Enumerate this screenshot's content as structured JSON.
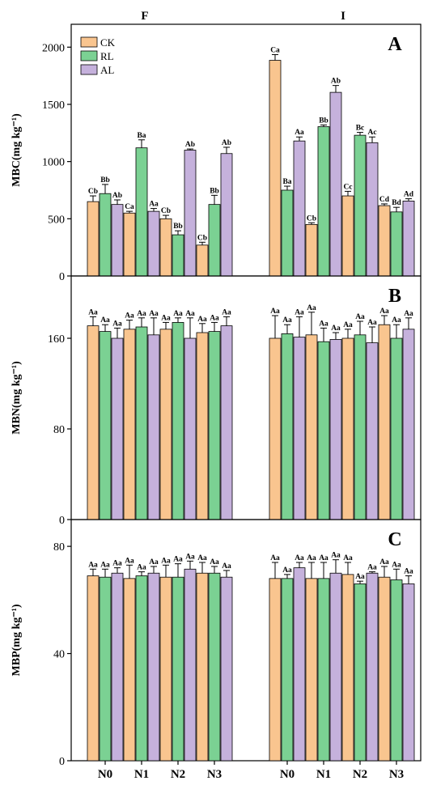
{
  "chart_data": {
    "type": "bar",
    "group_labels": [
      "F",
      "I"
    ],
    "categories": [
      "N0",
      "N1",
      "N2",
      "N3"
    ],
    "legend": [
      {
        "name": "CK",
        "color": "#F9C58F"
      },
      {
        "name": "RL",
        "color": "#7BD193"
      },
      {
        "name": "AL",
        "color": "#C5B1DC"
      }
    ],
    "panels": [
      {
        "letter": "A",
        "ylabel": "MBC(mg kg⁻¹)",
        "ylim": [
          0,
          2200
        ],
        "yticks": [
          0,
          500,
          1000,
          1500,
          2000
        ],
        "groups": [
          {
            "label": "F",
            "series": [
              {
                "name": "CK",
                "values": [
                  650,
                  550,
                  500,
                  270
                ],
                "errors": [
                  50,
                  15,
                  30,
                  25
                ],
                "letters": [
                  "Cb",
                  "Ca",
                  "Cb",
                  "Cb"
                ]
              },
              {
                "name": "RL",
                "values": [
                  720,
                  1120,
                  360,
                  625
                ],
                "errors": [
                  80,
                  70,
                  35,
                  80
                ],
                "letters": [
                  "Bb",
                  "Ba",
                  "Bb",
                  "Bb"
                ]
              },
              {
                "name": "AL",
                "values": [
                  625,
                  565,
                  1100,
                  1070
                ],
                "errors": [
                  40,
                  25,
                  10,
                  55
                ],
                "letters": [
                  "Ab",
                  "Aa",
                  "Ab",
                  "Ab"
                ]
              }
            ]
          },
          {
            "label": "I",
            "series": [
              {
                "name": "CK",
                "values": [
                  1885,
                  450,
                  700,
                  615
                ],
                "errors": [
                  50,
                  15,
                  40,
                  15
                ],
                "letters": [
                  "Ca",
                  "Cb",
                  "Cc",
                  "Cd"
                ]
              },
              {
                "name": "RL",
                "values": [
                  750,
                  1305,
                  1230,
                  560
                ],
                "errors": [
                  35,
                  15,
                  25,
                  40
                ],
                "letters": [
                  "Ba",
                  "Bb",
                  "Bc",
                  "Bd"
                ]
              },
              {
                "name": "AL",
                "values": [
                  1180,
                  1605,
                  1165,
                  655
                ],
                "errors": [
                  35,
                  60,
                  50,
                  20
                ],
                "letters": [
                  "Aa",
                  "Ab",
                  "Ac",
                  "Ad"
                ]
              }
            ]
          }
        ]
      },
      {
        "letter": "B",
        "ylabel": "MBN(mg kg⁻¹)",
        "ylim": [
          0,
          215
        ],
        "yticks": [
          0,
          80,
          160
        ],
        "groups": [
          {
            "label": "F",
            "series": [
              {
                "name": "CK",
                "values": [
                  171,
                  168,
                  168,
                  165
                ],
                "errors": [
                  8,
                  8,
                  6,
                  8
                ],
                "letters": [
                  "Aa",
                  "Aa",
                  "Aa",
                  "Aa"
                ]
              },
              {
                "name": "RL",
                "values": [
                  166,
                  170,
                  174,
                  166
                ],
                "errors": [
                  6,
                  8,
                  4,
                  8
                ],
                "letters": [
                  "Aa",
                  "Aa",
                  "Aa",
                  "Aa"
                ]
              },
              {
                "name": "AL",
                "values": [
                  160,
                  163,
                  160,
                  171
                ],
                "errors": [
                  9,
                  15,
                  18,
                  8
                ],
                "letters": [
                  "Aa",
                  "Aa",
                  "Aa",
                  "Aa"
                ]
              }
            ]
          },
          {
            "label": "I",
            "series": [
              {
                "name": "CK",
                "values": [
                  160,
                  163,
                  160,
                  172
                ],
                "errors": [
                  20,
                  20,
                  8,
                  8
                ],
                "letters": [
                  "Aa",
                  "Aa",
                  "Aa",
                  "Aa"
                ]
              },
              {
                "name": "RL",
                "values": [
                  164,
                  157,
                  163,
                  160
                ],
                "errors": [
                  8,
                  12,
                  12,
                  12
                ],
                "letters": [
                  "Aa",
                  "Aa",
                  "Aa",
                  "Aa"
                ]
              },
              {
                "name": "AL",
                "values": [
                  161,
                  159,
                  156,
                  168
                ],
                "errors": [
                  18,
                  6,
                  14,
                  10
                ],
                "letters": [
                  "Aa",
                  "Aa",
                  "Aa",
                  "Aa"
                ]
              }
            ]
          }
        ]
      },
      {
        "letter": "C",
        "ylabel": "MBP(mg kg⁻¹)",
        "ylim": [
          0,
          90
        ],
        "yticks": [
          0,
          40,
          80
        ],
        "groups": [
          {
            "label": "F",
            "series": [
              {
                "name": "CK",
                "values": [
                  69,
                  68,
                  68.5,
                  70
                ],
                "errors": [
                  2.5,
                  5,
                  4.5,
                  4
                ],
                "letters": [
                  "Aa",
                  "Aa",
                  "Aa",
                  "Aa"
                ]
              },
              {
                "name": "RL",
                "values": [
                  68.5,
                  69,
                  68.5,
                  70
                ],
                "errors": [
                  3,
                  1.5,
                  5,
                  2.5
                ],
                "letters": [
                  "Aa",
                  "Aa",
                  "Aa",
                  "Aa"
                ]
              },
              {
                "name": "AL",
                "values": [
                  70,
                  70,
                  71.5,
                  68.5
                ],
                "errors": [
                  2,
                  2.5,
                  3,
                  2.5
                ],
                "letters": [
                  "Aa",
                  "Aa",
                  "Aa",
                  "Aa"
                ]
              }
            ]
          },
          {
            "label": "I",
            "series": [
              {
                "name": "CK",
                "values": [
                  68,
                  68,
                  69.5,
                  68.5
                ],
                "errors": [
                  6,
                  6,
                  4.5,
                  4
                ],
                "letters": [
                  "Aa",
                  "Aa",
                  "Aa",
                  "Aa"
                ]
              },
              {
                "name": "RL",
                "values": [
                  68,
                  68,
                  66,
                  67.5
                ],
                "errors": [
                  1.5,
                  6,
                  1,
                  4
                ],
                "letters": [
                  "Aa",
                  "Aa",
                  "Aa",
                  "Aa"
                ]
              },
              {
                "name": "AL",
                "values": [
                  72,
                  70,
                  70,
                  66
                ],
                "errors": [
                  2,
                  5,
                  0.5,
                  3
                ],
                "letters": [
                  "Aa",
                  "Aa",
                  "Aa",
                  "Aa"
                ]
              }
            ]
          }
        ]
      }
    ]
  }
}
